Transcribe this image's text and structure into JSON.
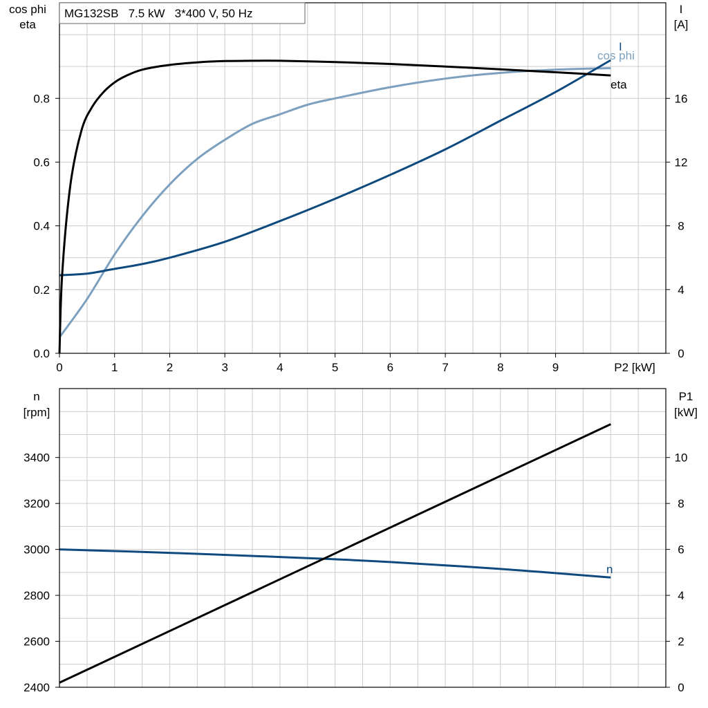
{
  "title_box": "MG132SB   7.5 kW   3*400 V, 50 Hz",
  "colors": {
    "eta": "#000000",
    "I": "#0f4a7f",
    "cos_phi": "#7da0bf",
    "n": "#0f4a7f",
    "P1": "#000000"
  },
  "top": {
    "left_label_line1": "cos phi",
    "left_label_line2": "eta",
    "right_label_line1": "I",
    "right_label_line2": "[A]",
    "x_label": "P2 [kW]",
    "label_I": "I",
    "label_cos_phi": "cos phi",
    "label_eta": "eta"
  },
  "bottom": {
    "left_label_line1": "n",
    "left_label_line2": "[rpm]",
    "right_label_line1": "P1",
    "right_label_line2": "[kW]",
    "label_n": "n"
  },
  "chart_data": [
    {
      "type": "line",
      "title": "MG132SB   7.5 kW   3*400 V, 50 Hz",
      "xlabel": "P2 [kW]",
      "ylabel": "cos phi / eta",
      "ylabel_right": "I [A]",
      "xlim": [
        0,
        11
      ],
      "ylim": [
        0,
        1.1
      ],
      "ylim_right": [
        0,
        22
      ],
      "grid": true,
      "x_ticks": [
        0,
        1,
        2,
        3,
        4,
        5,
        6,
        7,
        8,
        9
      ],
      "y_ticks": [
        0.0,
        0.2,
        0.4,
        0.6,
        0.8
      ],
      "y_ticks_right": [
        0,
        4,
        8,
        12,
        16
      ],
      "series": [
        {
          "name": "eta",
          "axis": "left",
          "x": [
            0,
            0.05,
            0.2,
            0.4,
            0.6,
            0.8,
            1.0,
            1.2,
            1.5,
            2.0,
            2.5,
            3.0,
            3.5,
            4.0,
            5.0,
            6.0,
            7.0,
            8.0,
            9.0,
            10.0
          ],
          "y": [
            0.0,
            0.25,
            0.53,
            0.7,
            0.775,
            0.82,
            0.85,
            0.87,
            0.89,
            0.905,
            0.913,
            0.917,
            0.918,
            0.918,
            0.914,
            0.908,
            0.9,
            0.891,
            0.882,
            0.872
          ]
        },
        {
          "name": "cos phi",
          "axis": "left",
          "x": [
            0,
            0.5,
            1.0,
            1.5,
            2.0,
            2.5,
            3.0,
            3.5,
            4.0,
            4.5,
            5.0,
            6.0,
            7.0,
            8.0,
            9.0,
            10.0
          ],
          "y": [
            0.05,
            0.17,
            0.31,
            0.43,
            0.53,
            0.61,
            0.67,
            0.72,
            0.75,
            0.78,
            0.8,
            0.835,
            0.862,
            0.88,
            0.89,
            0.895
          ]
        },
        {
          "name": "I",
          "axis": "right",
          "x": [
            0,
            0.5,
            1.0,
            1.5,
            2.0,
            3.0,
            4.0,
            5.0,
            6.0,
            7.0,
            8.0,
            9.0,
            10.0
          ],
          "y": [
            4.9,
            5.0,
            5.3,
            5.6,
            6.0,
            7.0,
            8.3,
            9.7,
            11.2,
            12.8,
            14.6,
            16.4,
            18.4
          ]
        }
      ]
    },
    {
      "type": "line",
      "xlabel": "P2 [kW]",
      "ylabel": "n [rpm]",
      "ylabel_right": "P1 [kW]",
      "xlim": [
        0,
        11
      ],
      "ylim": [
        2400,
        3700
      ],
      "ylim_right": [
        0,
        13
      ],
      "grid": true,
      "y_ticks": [
        2400,
        2600,
        2800,
        3000,
        3200,
        3400
      ],
      "y_ticks_right": [
        0,
        2,
        4,
        6,
        8,
        10
      ],
      "series": [
        {
          "name": "n",
          "axis": "left",
          "x": [
            0,
            2,
            4,
            5,
            6,
            8,
            10
          ],
          "y": [
            3000,
            2985,
            2967,
            2957,
            2945,
            2915,
            2878
          ]
        },
        {
          "axis": "right",
          "x": [
            0,
            10
          ],
          "y": [
            0.2,
            11.45
          ]
        }
      ]
    }
  ]
}
